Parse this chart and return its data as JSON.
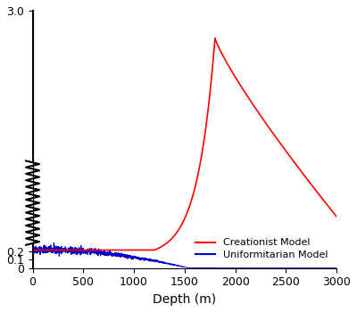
{
  "xlim": [
    0,
    3000
  ],
  "ylim": [
    0,
    3.0
  ],
  "yticks": [
    0,
    0.1,
    0.2,
    3.0
  ],
  "ytick_labels": [
    "0",
    "0.1",
    "0.2",
    "3.0"
  ],
  "xticks": [
    0,
    500,
    1000,
    1500,
    2000,
    2500,
    3000
  ],
  "xlabel": "Depth (m)",
  "creationist_color": "#ff0000",
  "uniformitarian_color": "#0000cd",
  "zigzag_color": "#000000",
  "background_color": "#ffffff",
  "legend_labels": [
    "Creationist Model",
    "Uniformitarian Model"
  ],
  "creationist_flat_value": 0.21,
  "creationist_rise_start": 1200,
  "creationist_peak_x": 1800,
  "creationist_peak_y": 2.68,
  "creationist_end_x": 3000,
  "creationist_end_y": 0.6,
  "uniformitarian_start_y": 0.215,
  "uniformitarian_noise_seed": 42,
  "zigzag_y_start": 1.25,
  "zigzag_y_end": 0.27,
  "zigzag_teeth": 13,
  "zigzag_amplitude": 0.022
}
